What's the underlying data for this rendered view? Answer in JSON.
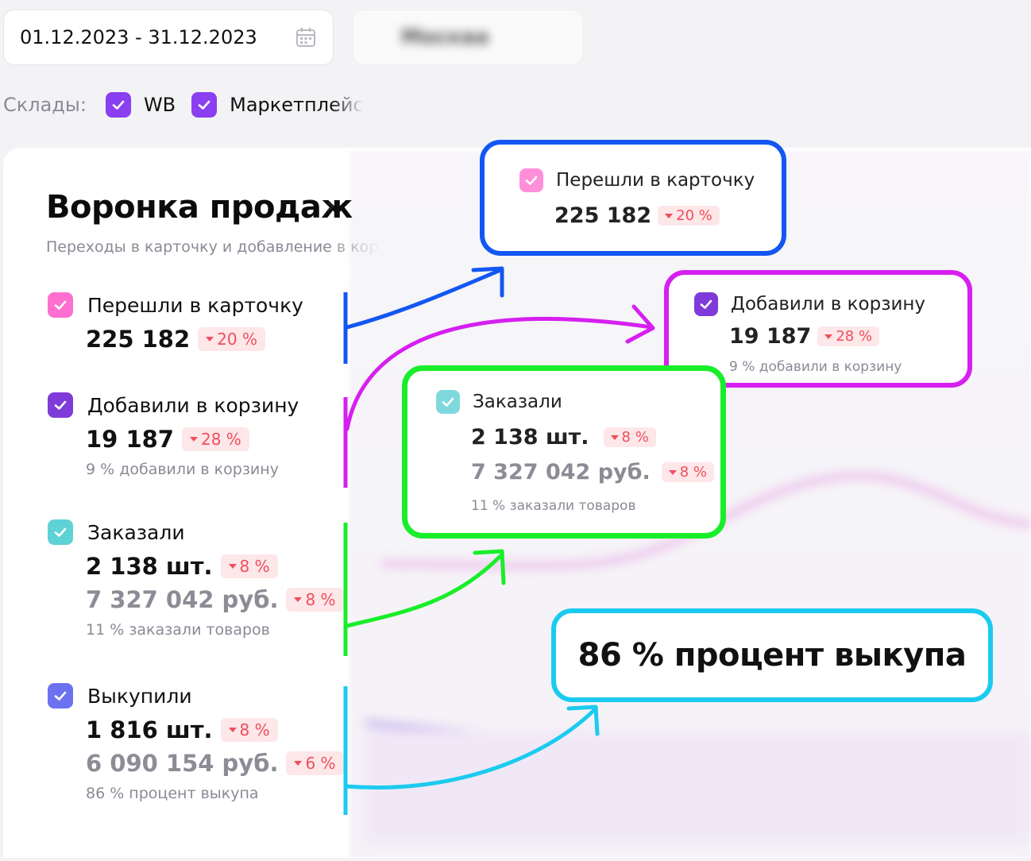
{
  "filters": {
    "date_range": "01.12.2023 - 31.12.2023",
    "blurred_select": "Москва",
    "warehouses_label": "Склады:",
    "warehouses": [
      {
        "label": "WB",
        "checked": true
      },
      {
        "label": "Маркетплейс",
        "checked": true
      }
    ]
  },
  "funnel": {
    "title": "Воронка продаж",
    "subtitle": "Переходы в карточку и добавление в корзину",
    "metrics": [
      {
        "label": "Перешли в карточку",
        "value": "225 182",
        "change": "20 %",
        "color": "#ff6fd0"
      },
      {
        "label": "Добавили в корзину",
        "value": "19 187",
        "change": "28 %",
        "hint": "9 % добавили в корзину",
        "color": "#7e3bd9"
      },
      {
        "label": "Заказали",
        "value": "2 138 шт.",
        "change": "8 %",
        "value2": "7 327 042 руб.",
        "change2": "8 %",
        "hint": "11 % заказали товаров",
        "color": "#5fd2d6"
      },
      {
        "label": "Выкупили",
        "value": "1 816 шт.",
        "change": "8 %",
        "value2": "6 090 154 руб.",
        "change2": "6 %",
        "hint": "86 % процент выкупа",
        "color": "#6c72ef"
      }
    ]
  },
  "callouts": {
    "cards": {
      "label": "Перешли в карточку",
      "value": "225 182",
      "change": "20 %"
    },
    "cart": {
      "label": "Добавили в корзину",
      "value": "19 187",
      "change": "28 %",
      "hint": "9 % добавили в корзину"
    },
    "orders": {
      "label": "Заказали",
      "value": "2 138 шт.",
      "change": "8 %",
      "value2": "7 327 042 руб.",
      "change2": "8 %",
      "hint": "11 % заказали товаров"
    },
    "buyout": {
      "text": "86 % процент выкупа"
    }
  },
  "colors": {
    "blue": "#1357f2",
    "magenta": "#d61ff0",
    "green": "#19ee2a",
    "cyan": "#1bcbef",
    "badge_text": "#ef4f5b",
    "badge_bg": "#fde7e9"
  }
}
